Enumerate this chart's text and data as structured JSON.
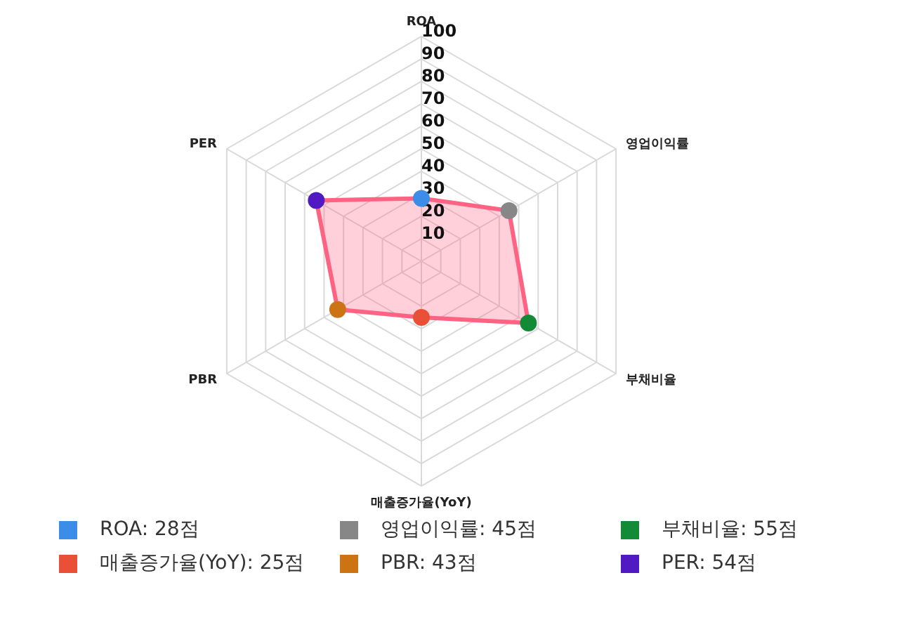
{
  "chart_data": {
    "type": "radar",
    "categories": [
      "ROA",
      "영업이익률",
      "부채비율",
      "매출증가율(YoY)",
      "PBR",
      "PER"
    ],
    "series": [
      {
        "color": "#ff6384",
        "colors": [
          "#3b8de8",
          "#878787",
          "#138a36",
          "#ea4f38",
          "#cc7314",
          "#5019c2"
        ],
        "values": [
          28,
          45,
          55,
          25,
          43,
          54
        ]
      }
    ],
    "annotations": [
      "ROA: 28점",
      "영업이익률: 45점",
      "부채비율: 55점",
      "매출증가율(YoY): 25점",
      "PBR: 43점",
      "PER: 54점"
    ],
    "ylim": [
      0,
      100
    ],
    "yticks": [
      10,
      20,
      30,
      40,
      50,
      60,
      70,
      80,
      90,
      100
    ],
    "grid": true,
    "marker": "circle"
  }
}
